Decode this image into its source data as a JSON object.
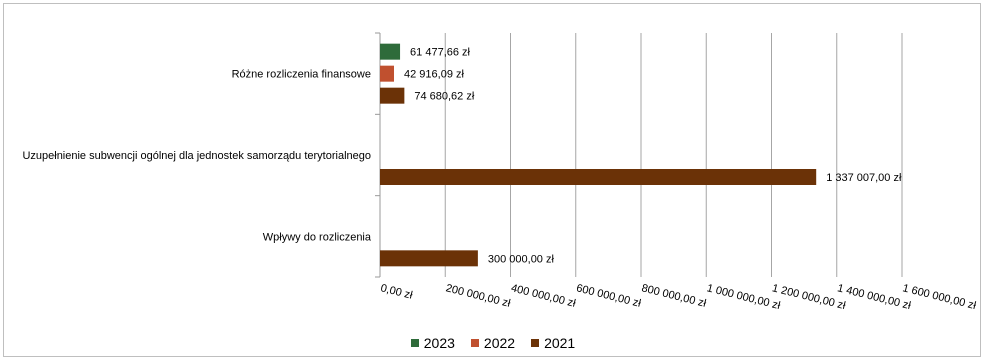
{
  "chart_data": {
    "type": "bar",
    "orientation": "horizontal",
    "categories": [
      "Różne rozliczenia finansowe",
      "Uzupełnienie subwencji ogólnej dla jednostek samorządu terytorialnego",
      "Wpływy do rozliczenia"
    ],
    "series": [
      {
        "name": "2023",
        "color": "#2e6b3a",
        "values": [
          61477.66,
          null,
          null
        ],
        "labels": [
          "61 477,66 zł",
          "",
          ""
        ]
      },
      {
        "name": "2022",
        "color": "#c0502f",
        "values": [
          42916.09,
          null,
          null
        ],
        "labels": [
          "42 916,09 zł",
          "",
          ""
        ]
      },
      {
        "name": "2021",
        "color": "#6b3207",
        "values": [
          74680.62,
          1337007.0,
          300000.0
        ],
        "labels": [
          "74 680,62 zł",
          "1 337 007,00 zł",
          "300 000,00 zł"
        ]
      }
    ],
    "xlim": [
      0,
      1600000
    ],
    "x_ticks": [
      0,
      200000,
      400000,
      600000,
      800000,
      1000000,
      1200000,
      1400000,
      1600000
    ],
    "x_tick_labels": [
      "0,00 zł",
      "200 000,00 zł",
      "400 000,00 zł",
      "600 000,00 zł",
      "800 000,00 zł",
      "1 000 000,00 zł",
      "1 200 000,00 zł",
      "1 400 000,00 zł",
      "1 600 000,00 zł"
    ],
    "grid": true,
    "legend_position": "bottom",
    "legend": [
      "2023",
      "2022",
      "2021"
    ]
  }
}
